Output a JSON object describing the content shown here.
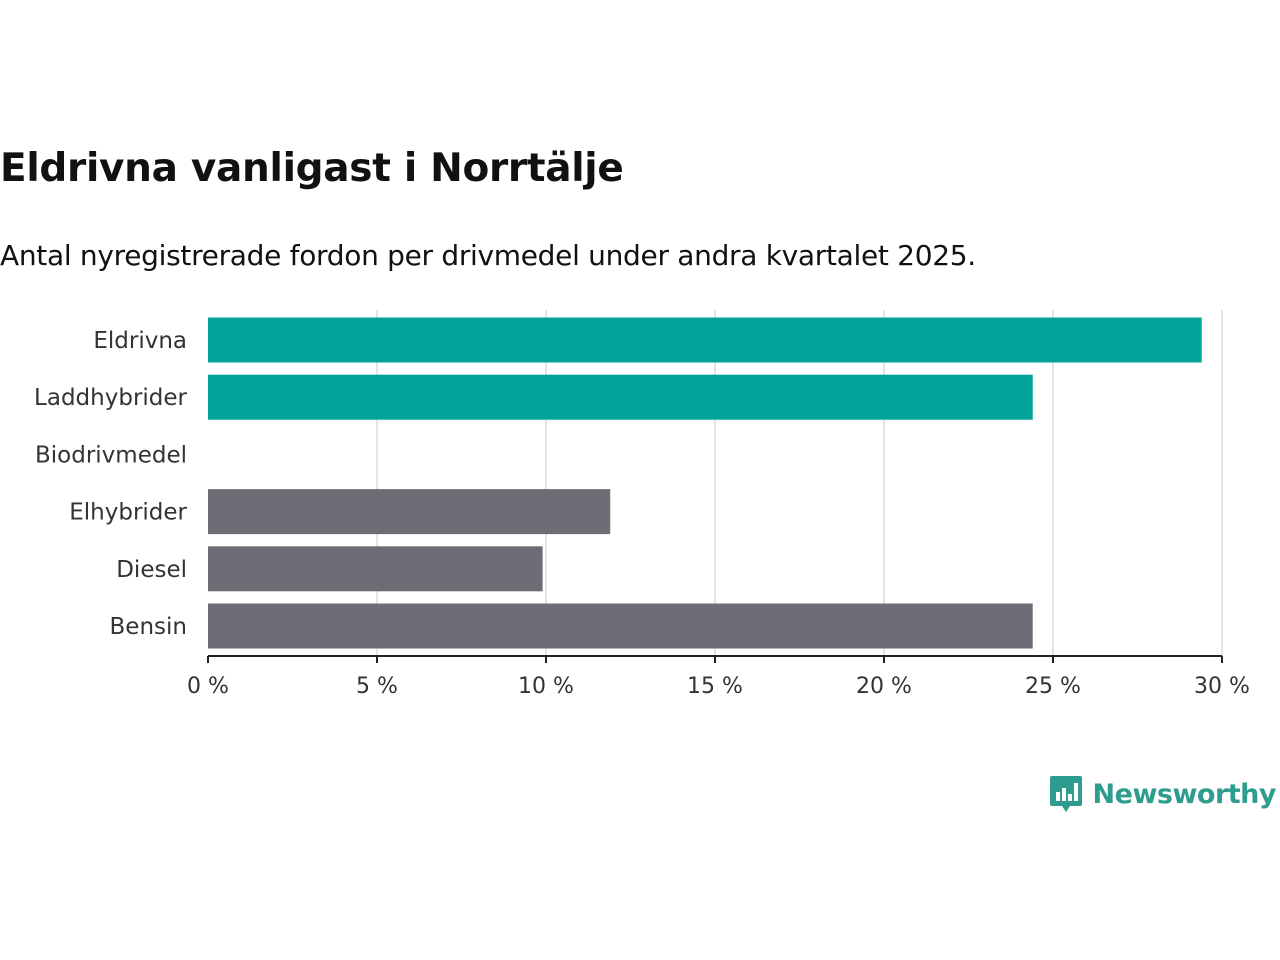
{
  "title": "Eldrivna vanligast i Norrtälje",
  "subtitle": "Antal nyregistrerade fordon per drivmedel under andra kvartalet 2025.",
  "brand": {
    "name": "Newsworthy",
    "icon": "newsworthy-logo-icon"
  },
  "colors": {
    "highlight": "#00a39a",
    "default": "#6e6d75",
    "grid": "#dcdcdc",
    "axis": "#222222",
    "brand": "#2e9c8e"
  },
  "chart_data": {
    "type": "bar",
    "orientation": "horizontal",
    "title": "Eldrivna vanligast i Norrtälje",
    "subtitle": "Antal nyregistrerade fordon per drivmedel under andra kvartalet 2025.",
    "categories": [
      "Eldrivna",
      "Laddhybrider",
      "Biodrivmedel",
      "Elhybrider",
      "Diesel",
      "Bensin"
    ],
    "values": [
      29.4,
      24.4,
      0,
      11.9,
      9.9,
      24.4
    ],
    "highlight": [
      true,
      true,
      false,
      false,
      false,
      false
    ],
    "xlim": [
      0,
      30
    ],
    "xticks": [
      0,
      5,
      10,
      15,
      20,
      25,
      30
    ],
    "xtick_labels": [
      "0 %",
      "5 %",
      "10 %",
      "15 %",
      "20 %",
      "25 %",
      "30 %"
    ],
    "xlabel": "",
    "ylabel": "",
    "grid": "vertical",
    "legend": "none"
  }
}
